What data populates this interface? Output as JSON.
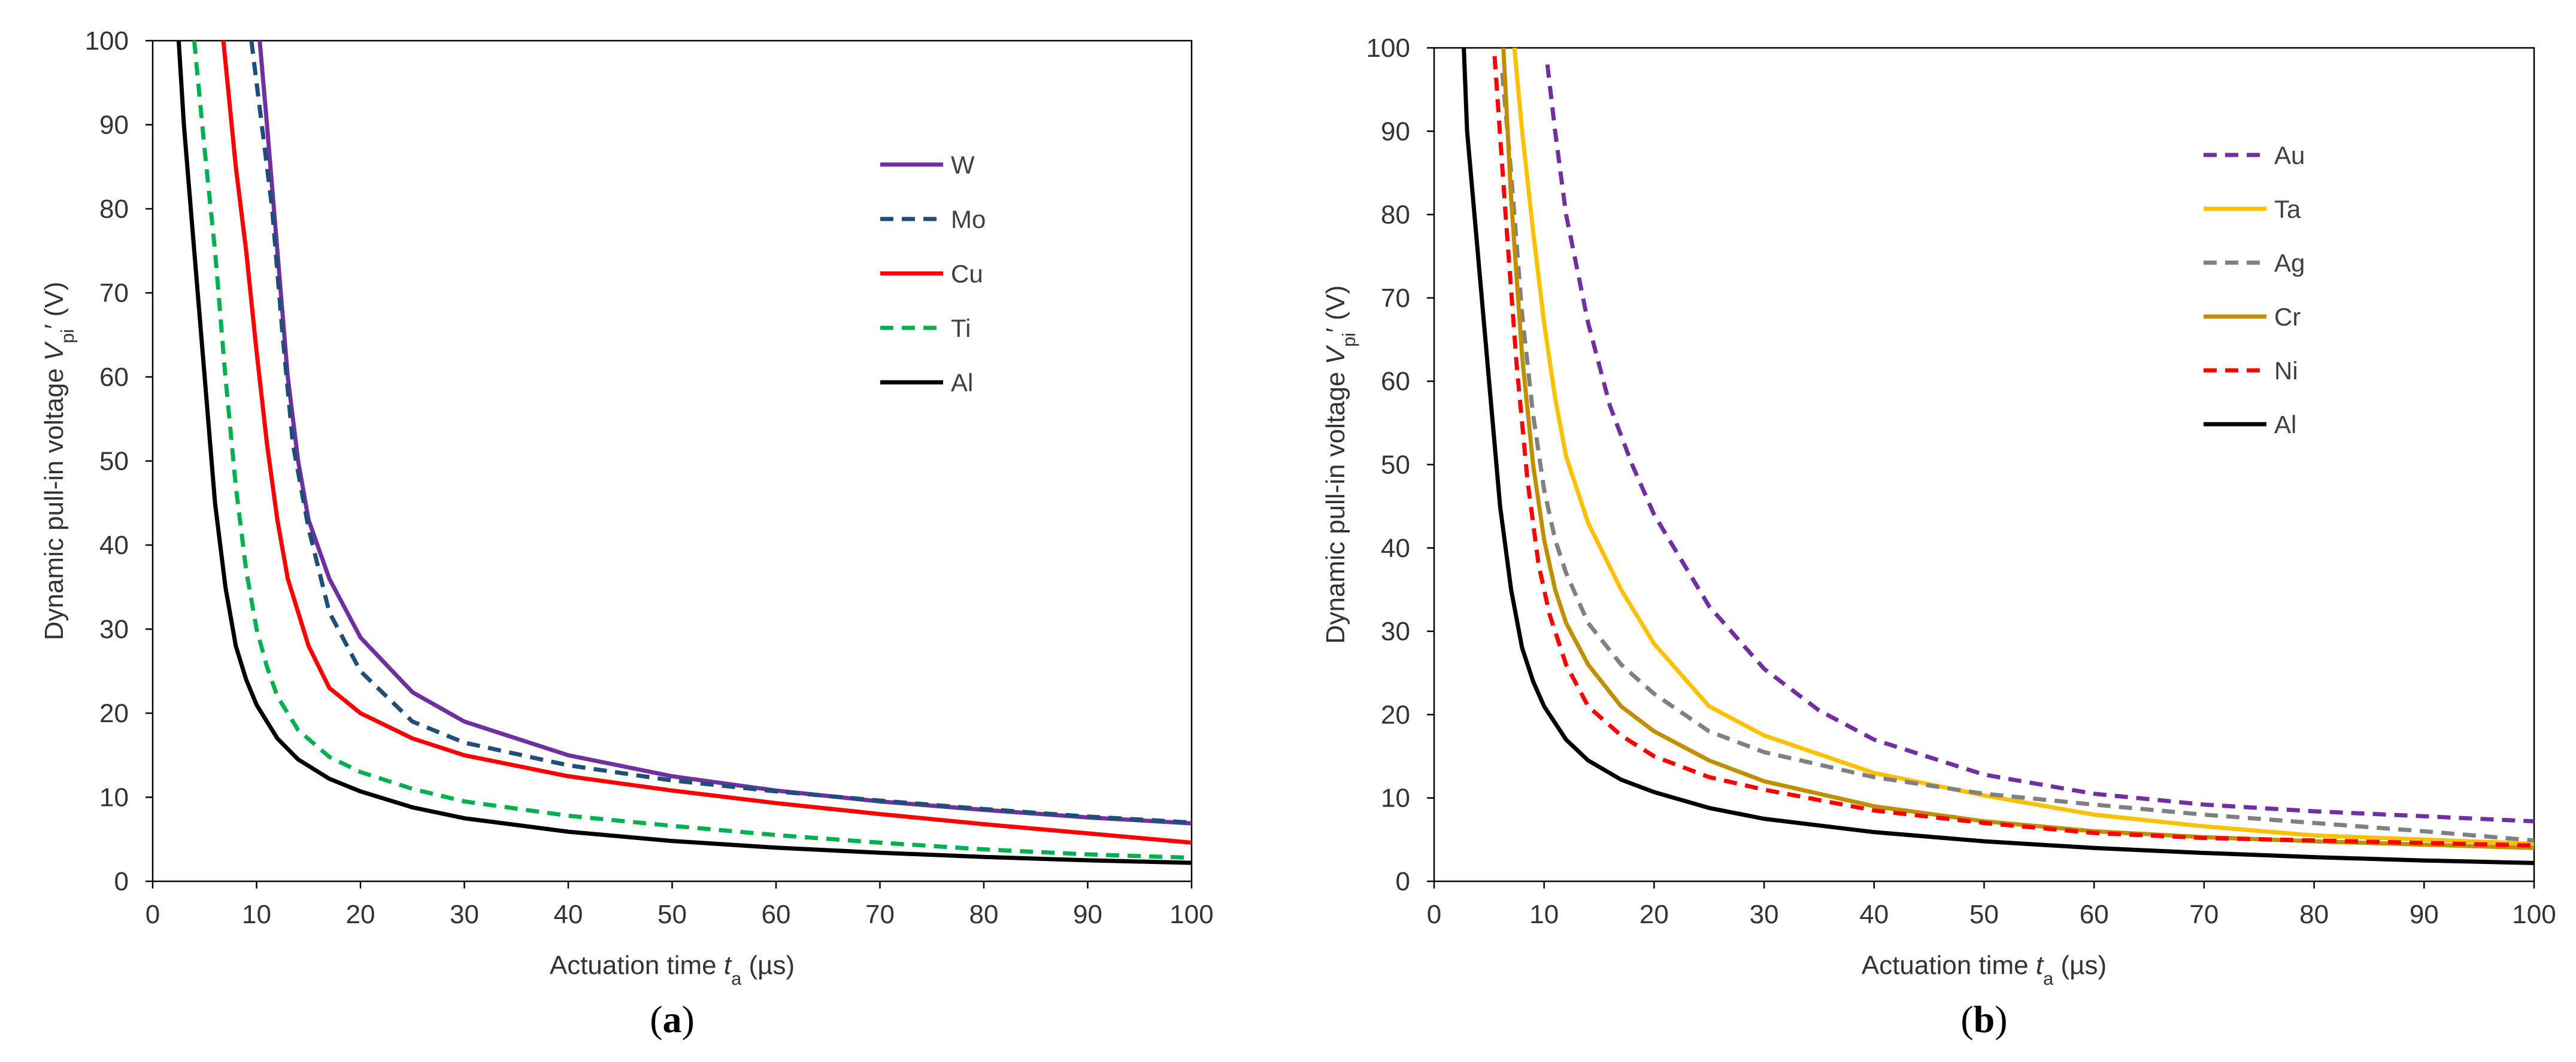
{
  "panels": [
    {
      "label": "(a)",
      "label_text": "a"
    },
    {
      "label": "(b)",
      "label_text": "b"
    }
  ],
  "chart_data": [
    {
      "type": "line",
      "panel_label": "(a)",
      "xlabel": "Actuation time t_a (µs)",
      "ylabel": "Dynamic pull-in voltage V_pi′ (V)",
      "xlim": [
        0,
        100
      ],
      "ylim": [
        0,
        100
      ],
      "xticks": [
        0,
        10,
        20,
        30,
        40,
        50,
        60,
        70,
        80,
        90,
        100
      ],
      "yticks": [
        0,
        10,
        20,
        30,
        40,
        50,
        60,
        70,
        80,
        90,
        100
      ],
      "grid": false,
      "legend_position": "top-right",
      "series": [
        {
          "name": "W",
          "color": "#7030a0",
          "dash": "solid",
          "points": [
            [
              10.3,
              100
            ],
            [
              11,
              90
            ],
            [
              12,
              75
            ],
            [
              13,
              60
            ],
            [
              14,
              50
            ],
            [
              15,
              43
            ],
            [
              17,
              36
            ],
            [
              20,
              29
            ],
            [
              25,
              22.5
            ],
            [
              30,
              19
            ],
            [
              40,
              15
            ],
            [
              50,
              12.5
            ],
            [
              60,
              10.8
            ],
            [
              70,
              9.5
            ],
            [
              80,
              8.5
            ],
            [
              90,
              7.6
            ],
            [
              100,
              6.9
            ]
          ]
        },
        {
          "name": "Mo",
          "color": "#1f4e79",
          "dash": "dashed",
          "points": [
            [
              9.5,
              100
            ],
            [
              10.5,
              90
            ],
            [
              11.5,
              80
            ],
            [
              12.5,
              65
            ],
            [
              13.5,
              52
            ],
            [
              15,
              42
            ],
            [
              17,
              32
            ],
            [
              20,
              25
            ],
            [
              25,
              19
            ],
            [
              30,
              16.5
            ],
            [
              40,
              13.8
            ],
            [
              50,
              12
            ],
            [
              60,
              10.7
            ],
            [
              70,
              9.6
            ],
            [
              80,
              8.6
            ],
            [
              90,
              7.7
            ],
            [
              100,
              7
            ]
          ]
        },
        {
          "name": "Cu",
          "color": "#ff0000",
          "dash": "solid",
          "points": [
            [
              6.8,
              100
            ],
            [
              8,
              85
            ],
            [
              9,
              75
            ],
            [
              10,
              63
            ],
            [
              11,
              52
            ],
            [
              12,
              43
            ],
            [
              13,
              36
            ],
            [
              15,
              28
            ],
            [
              17,
              23
            ],
            [
              20,
              20
            ],
            [
              25,
              17
            ],
            [
              30,
              15
            ],
            [
              40,
              12.5
            ],
            [
              50,
              10.8
            ],
            [
              60,
              9.3
            ],
            [
              70,
              8
            ],
            [
              80,
              6.8
            ],
            [
              90,
              5.7
            ],
            [
              100,
              4.6
            ]
          ]
        },
        {
          "name": "Ti",
          "color": "#00b050",
          "dash": "dashed",
          "points": [
            [
              4,
              100
            ],
            [
              5,
              87
            ],
            [
              6,
              75
            ],
            [
              7,
              60
            ],
            [
              8,
              47
            ],
            [
              9,
              37
            ],
            [
              10,
              30
            ],
            [
              11,
              25.5
            ],
            [
              12,
              22
            ],
            [
              14,
              18
            ],
            [
              17,
              14.8
            ],
            [
              20,
              13
            ],
            [
              25,
              11
            ],
            [
              30,
              9.5
            ],
            [
              40,
              7.8
            ],
            [
              50,
              6.6
            ],
            [
              60,
              5.5
            ],
            [
              70,
              4.6
            ],
            [
              80,
              3.8
            ],
            [
              90,
              3.2
            ],
            [
              100,
              2.8
            ]
          ]
        },
        {
          "name": "Al",
          "color": "#000000",
          "dash": "solid",
          "points": [
            [
              2.5,
              100
            ],
            [
              3,
              90
            ],
            [
              4,
              75
            ],
            [
              5,
              60
            ],
            [
              6,
              45
            ],
            [
              7,
              35
            ],
            [
              8,
              28
            ],
            [
              9,
              24
            ],
            [
              10,
              21
            ],
            [
              12,
              17
            ],
            [
              14,
              14.5
            ],
            [
              17,
              12.2
            ],
            [
              20,
              10.7
            ],
            [
              25,
              8.8
            ],
            [
              30,
              7.5
            ],
            [
              40,
              5.9
            ],
            [
              50,
              4.8
            ],
            [
              60,
              4
            ],
            [
              70,
              3.4
            ],
            [
              80,
              2.9
            ],
            [
              90,
              2.5
            ],
            [
              100,
              2.2
            ]
          ]
        }
      ]
    },
    {
      "type": "line",
      "panel_label": "(b)",
      "xlabel": "Actuation time t_a (µs)",
      "ylabel": "Dynamic pull-in voltage V_pi′ (V)",
      "xlim": [
        0,
        100
      ],
      "ylim": [
        0,
        100
      ],
      "xticks": [
        0,
        10,
        20,
        30,
        40,
        50,
        60,
        70,
        80,
        90,
        100
      ],
      "yticks": [
        0,
        10,
        20,
        30,
        40,
        50,
        60,
        70,
        80,
        90,
        100
      ],
      "grid": false,
      "legend_position": "top-right",
      "series": [
        {
          "name": "Au",
          "color": "#7030a0",
          "dash": "dashed",
          "points": [
            [
              10.3,
              98
            ],
            [
              11,
              90
            ],
            [
              12,
              80
            ],
            [
              14,
              67
            ],
            [
              16,
              57
            ],
            [
              18,
              50
            ],
            [
              20,
              44
            ],
            [
              25,
              33
            ],
            [
              30,
              25.5
            ],
            [
              35,
              20.5
            ],
            [
              40,
              17
            ],
            [
              50,
              12.8
            ],
            [
              60,
              10.5
            ],
            [
              70,
              9.2
            ],
            [
              80,
              8.4
            ],
            [
              90,
              7.8
            ],
            [
              100,
              7.2
            ]
          ]
        },
        {
          "name": "Ta",
          "color": "#ffc000",
          "dash": "solid",
          "points": [
            [
              7.3,
              100
            ],
            [
              8,
              90
            ],
            [
              9,
              78
            ],
            [
              10,
              67
            ],
            [
              11,
              58
            ],
            [
              12,
              51
            ],
            [
              14,
              43
            ],
            [
              17,
              35
            ],
            [
              20,
              28.5
            ],
            [
              25,
              21
            ],
            [
              30,
              17.5
            ],
            [
              40,
              13
            ],
            [
              50,
              10.3
            ],
            [
              60,
              8
            ],
            [
              70,
              6.6
            ],
            [
              80,
              5.5
            ],
            [
              90,
              5
            ],
            [
              100,
              4.5
            ]
          ]
        },
        {
          "name": "Ag",
          "color": "#808080",
          "dash": "dashed",
          "points": [
            [
              6.2,
              97
            ],
            [
              7,
              85
            ],
            [
              8,
              68
            ],
            [
              9,
              56
            ],
            [
              10,
              47
            ],
            [
              11,
              41
            ],
            [
              12,
              37
            ],
            [
              14,
              31
            ],
            [
              17,
              26
            ],
            [
              20,
              22.5
            ],
            [
              25,
              18
            ],
            [
              30,
              15.5
            ],
            [
              40,
              12.5
            ],
            [
              50,
              10.5
            ],
            [
              60,
              9.2
            ],
            [
              70,
              8
            ],
            [
              80,
              7
            ],
            [
              90,
              6
            ],
            [
              100,
              4.9
            ]
          ]
        },
        {
          "name": "Cr",
          "color": "#bf8f00",
          "dash": "solid",
          "points": [
            [
              6.3,
              100
            ],
            [
              7,
              82
            ],
            [
              8,
              63
            ],
            [
              9,
              50
            ],
            [
              10,
              41
            ],
            [
              11,
              35
            ],
            [
              12,
              31
            ],
            [
              14,
              26
            ],
            [
              17,
              21
            ],
            [
              20,
              18
            ],
            [
              25,
              14.5
            ],
            [
              30,
              12
            ],
            [
              40,
              9
            ],
            [
              50,
              7.2
            ],
            [
              60,
              6
            ],
            [
              70,
              5.3
            ],
            [
              80,
              4.8
            ],
            [
              90,
              4.4
            ],
            [
              100,
              4
            ]
          ]
        },
        {
          "name": "Ni",
          "color": "#ff0000",
          "dash": "dashed",
          "points": [
            [
              5.5,
              99
            ],
            [
              6.5,
              80
            ],
            [
              7.5,
              62
            ],
            [
              8.5,
              48
            ],
            [
              9.5,
              38
            ],
            [
              10.5,
              32
            ],
            [
              12,
              26
            ],
            [
              14,
              21
            ],
            [
              17,
              17.5
            ],
            [
              20,
              15
            ],
            [
              25,
              12.5
            ],
            [
              30,
              11
            ],
            [
              40,
              8.5
            ],
            [
              50,
              7
            ],
            [
              60,
              5.8
            ],
            [
              70,
              5.2
            ],
            [
              80,
              4.9
            ],
            [
              90,
              4.6
            ],
            [
              100,
              4.3
            ]
          ]
        },
        {
          "name": "Al",
          "color": "#000000",
          "dash": "solid",
          "points": [
            [
              2.7,
              100
            ],
            [
              3,
              90
            ],
            [
              4,
              75
            ],
            [
              5,
              60
            ],
            [
              6,
              45
            ],
            [
              7,
              35
            ],
            [
              8,
              28
            ],
            [
              9,
              24
            ],
            [
              10,
              21
            ],
            [
              12,
              17
            ],
            [
              14,
              14.5
            ],
            [
              17,
              12.2
            ],
            [
              20,
              10.7
            ],
            [
              25,
              8.8
            ],
            [
              30,
              7.5
            ],
            [
              40,
              5.9
            ],
            [
              50,
              4.8
            ],
            [
              60,
              4
            ],
            [
              70,
              3.4
            ],
            [
              80,
              2.9
            ],
            [
              90,
              2.5
            ],
            [
              100,
              2.2
            ]
          ]
        }
      ]
    }
  ]
}
